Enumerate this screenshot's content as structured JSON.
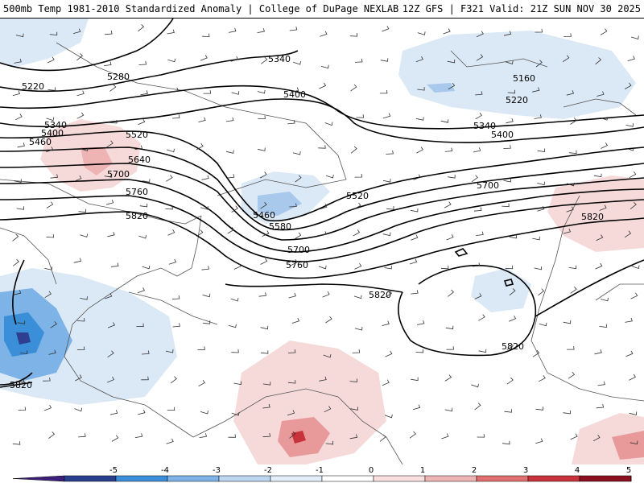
{
  "header": {
    "left": "500mb Temp 1981-2010 Standardized Anomaly | College of DuPage NEXLAB",
    "right": "12Z GFS | F321 Valid: 21Z SUN NOV 30 2025"
  },
  "colors": {
    "strong_cold": "#2f3f8f",
    "cold": "#3a8fd8",
    "cool": "#a8c8ec",
    "slight_cool": "#dbe8f6",
    "slight_warm": "#f6dada",
    "warm": "#e89a9a",
    "hot": "#c8323a",
    "contour": "#000000",
    "coast": "#555555"
  },
  "contour_labels": [
    {
      "id": "l5220a",
      "text": "5220"
    },
    {
      "id": "l5280",
      "text": "5280"
    },
    {
      "id": "l5340a",
      "text": "5340"
    },
    {
      "id": "l5400a",
      "text": "5400"
    },
    {
      "id": "l5340b",
      "text": "5340"
    },
    {
      "id": "l5400b",
      "text": "5400"
    },
    {
      "id": "l5460a",
      "text": "5460"
    },
    {
      "id": "l5520a",
      "text": "5520"
    },
    {
      "id": "l5640",
      "text": "5640"
    },
    {
      "id": "l5700a",
      "text": "5700"
    },
    {
      "id": "l5760a",
      "text": "5760"
    },
    {
      "id": "l5820a",
      "text": "5820"
    },
    {
      "id": "l5460b",
      "text": "5460"
    },
    {
      "id": "l5580",
      "text": "5580"
    },
    {
      "id": "l5520b",
      "text": "5520"
    },
    {
      "id": "l5700b",
      "text": "5700"
    },
    {
      "id": "l5760b",
      "text": "5760"
    },
    {
      "id": "l5160",
      "text": "5160"
    },
    {
      "id": "l5220b",
      "text": "5220"
    },
    {
      "id": "l5340c",
      "text": "5340"
    },
    {
      "id": "l5400c",
      "text": "5400"
    },
    {
      "id": "l5700c",
      "text": "5700"
    },
    {
      "id": "l5820b",
      "text": "5820"
    },
    {
      "id": "l5820c",
      "text": "5820"
    },
    {
      "id": "l5820d",
      "text": "5820"
    },
    {
      "id": "l5820e",
      "text": "5820"
    }
  ],
  "colorbar": {
    "ticks": [
      "-5",
      "-4",
      "-3",
      "-2",
      "-1",
      "0",
      "1",
      "2",
      "3",
      "4",
      "5"
    ],
    "colors": [
      "#3b1f7a",
      "#2a3f8c",
      "#3a8fd8",
      "#7db3e6",
      "#bcd6f0",
      "#e4eef9",
      "#ffffff",
      "#f8e0e0",
      "#eeb4b4",
      "#e07070",
      "#c8323a",
      "#8a1020",
      "#f0c020"
    ]
  }
}
